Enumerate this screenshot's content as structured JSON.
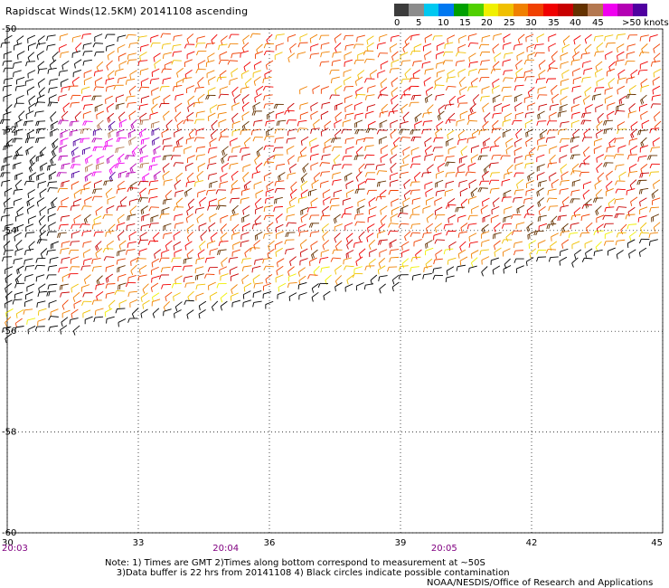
{
  "title": "Rapidscat Winds(12.5KM) 20141108 ascending",
  "legend": {
    "colors": [
      "#3c3c3c",
      "#8c8c8c",
      "#00c8f0",
      "#0078f0",
      "#00a000",
      "#50d000",
      "#f0f000",
      "#f0c000",
      "#f08000",
      "#f04000",
      "#f00000",
      "#c80000",
      "#643200",
      "#b47850",
      "#f000f0",
      "#b400b4",
      "#5000a0"
    ],
    "labels": [
      "0",
      "5",
      "10",
      "15",
      "20",
      "25",
      "30",
      "35",
      "40",
      "45",
      ">50 knots"
    ]
  },
  "chart_data": {
    "type": "map",
    "x_tick_labels": [
      "30",
      "33",
      "36",
      "39",
      "42",
      "45"
    ],
    "y_tick_labels": [
      "-50",
      "-52",
      "-54",
      "-56",
      "-58",
      "-60"
    ],
    "xlim": [
      30,
      45
    ],
    "ylim": [
      -60,
      -50
    ],
    "time_labels": [
      {
        "lon": 30,
        "text": "20:03"
      },
      {
        "lon": 35,
        "text": "20:04"
      },
      {
        "lon": 40,
        "text": "20:05"
      }
    ],
    "grid": "dotted",
    "wind_speed_knots": {
      "min": 0,
      "max": 50
    },
    "swath_lat_range": [
      -56,
      -50
    ]
  },
  "notes": {
    "line1": "Note: 1) Times are GMT 2)Times along bottom correspond to measurement at ~50S",
    "line2": "3)Data buffer is 22 hrs from 20141108 4) Black circles indicate possible contamination"
  },
  "credit": "NOAA/NESDIS/Office of Research and Applications"
}
